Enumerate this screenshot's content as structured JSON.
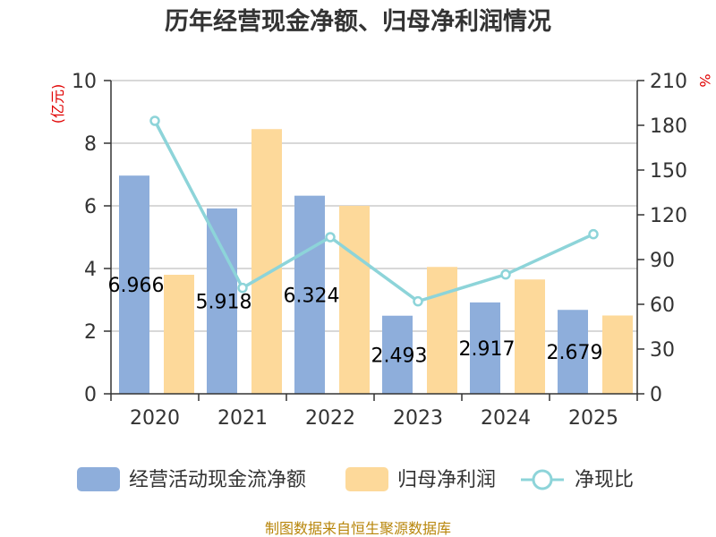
{
  "chart_data": {
    "type": "bar",
    "title": "历年经营现金净额、归母净利润情况",
    "categories": [
      "2020",
      "2021",
      "2022",
      "2023",
      "2024",
      "2025"
    ],
    "y_left_unit": "(亿元)",
    "y_right_unit": "%",
    "y_left_range": [
      0,
      10
    ],
    "y_left_ticks": [
      "0",
      "2",
      "4",
      "6",
      "8",
      "10"
    ],
    "y_right_range": [
      0,
      210
    ],
    "y_right_ticks": [
      "0",
      "30",
      "60",
      "90",
      "120",
      "150",
      "180",
      "210"
    ],
    "series": [
      {
        "name": "经营活动现金流净额",
        "type": "bar",
        "axis": "left",
        "values": [
          6.966,
          5.918,
          6.324,
          2.493,
          2.917,
          2.679
        ],
        "labels": [
          "6.966",
          "5.918",
          "6.324",
          "2.493",
          "2.917",
          "2.679"
        ]
      },
      {
        "name": "归母净利润",
        "type": "bar",
        "axis": "left",
        "values": [
          3.8,
          8.45,
          6.0,
          4.05,
          3.65,
          2.5
        ]
      },
      {
        "name": "净现比",
        "type": "line",
        "axis": "right",
        "values": [
          183,
          71,
          105,
          62,
          80,
          107
        ]
      }
    ],
    "grid": true,
    "legend_position": "bottom"
  },
  "colors": {
    "bar1": "#8eaedb",
    "bar2": "#fdd99a",
    "line": "#8dd4d9",
    "axis": "#333333",
    "grid": "#cccccc",
    "unit": "#e00000",
    "source": "#b8860b"
  },
  "source_text": "制图数据来自恒生聚源数据库"
}
